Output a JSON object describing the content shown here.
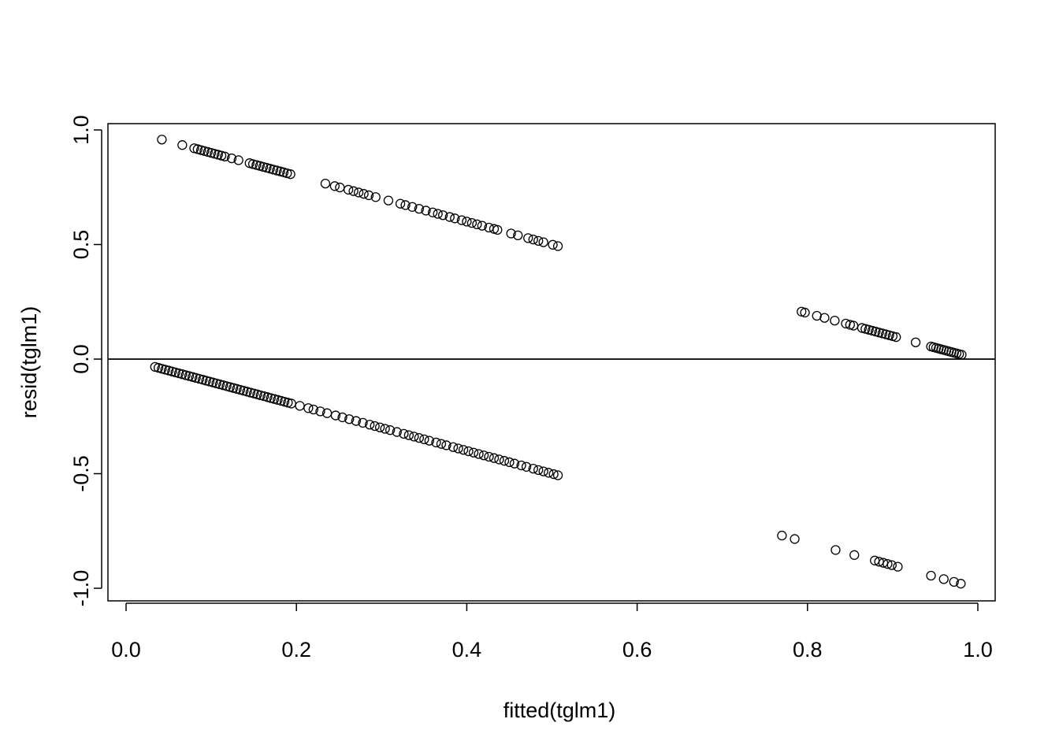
{
  "chart_data": {
    "type": "scatter",
    "title": "",
    "xlabel": "fitted(tglm1)",
    "ylabel": "resid(tglm1)",
    "xlim": [
      0.0,
      1.0
    ],
    "ylim": [
      -1.0,
      1.0
    ],
    "x_ticks": [
      "0.0",
      "0.2",
      "0.4",
      "0.6",
      "0.8",
      "1.0"
    ],
    "y_ticks": [
      "-1.0",
      "-0.5",
      "0.0",
      "0.5",
      "1.0"
    ],
    "reference_line_y": 0,
    "marker": "open-circle",
    "grid": false,
    "series": [
      {
        "x": [
          0.042,
          0.066,
          0.08,
          0.084,
          0.088,
          0.092,
          0.096,
          0.1,
          0.104,
          0.108,
          0.112,
          0.116,
          0.124,
          0.132,
          0.145,
          0.149,
          0.153,
          0.157,
          0.161,
          0.165,
          0.169,
          0.173,
          0.177,
          0.181,
          0.185,
          0.189,
          0.193,
          0.234,
          0.245,
          0.251,
          0.261,
          0.267,
          0.273,
          0.279,
          0.285,
          0.293,
          0.308,
          0.322,
          0.328,
          0.336,
          0.344,
          0.352,
          0.36,
          0.366,
          0.372,
          0.38,
          0.386,
          0.394,
          0.4,
          0.406,
          0.412,
          0.418,
          0.426,
          0.432,
          0.436,
          0.452,
          0.46,
          0.472,
          0.478,
          0.484,
          0.49,
          0.501,
          0.507
        ],
        "y": [
          0.958,
          0.934,
          0.92,
          0.916,
          0.912,
          0.908,
          0.904,
          0.9,
          0.896,
          0.892,
          0.888,
          0.884,
          0.876,
          0.868,
          0.855,
          0.851,
          0.847,
          0.843,
          0.839,
          0.835,
          0.831,
          0.827,
          0.823,
          0.819,
          0.815,
          0.811,
          0.807,
          0.766,
          0.755,
          0.749,
          0.739,
          0.733,
          0.727,
          0.721,
          0.715,
          0.707,
          0.692,
          0.678,
          0.672,
          0.664,
          0.656,
          0.648,
          0.64,
          0.634,
          0.628,
          0.62,
          0.614,
          0.606,
          0.6,
          0.594,
          0.588,
          0.582,
          0.574,
          0.568,
          0.564,
          0.548,
          0.54,
          0.528,
          0.522,
          0.516,
          0.51,
          0.499,
          0.493
        ]
      },
      {
        "x": [
          0.034,
          0.038,
          0.042,
          0.046,
          0.05,
          0.054,
          0.058,
          0.062,
          0.066,
          0.07,
          0.074,
          0.078,
          0.082,
          0.086,
          0.09,
          0.094,
          0.098,
          0.102,
          0.106,
          0.11,
          0.114,
          0.118,
          0.122,
          0.126,
          0.13,
          0.134,
          0.138,
          0.142,
          0.146,
          0.15,
          0.154,
          0.158,
          0.162,
          0.166,
          0.17,
          0.174,
          0.178,
          0.182,
          0.186,
          0.19,
          0.194,
          0.204,
          0.214,
          0.22,
          0.228,
          0.236,
          0.246,
          0.254,
          0.262,
          0.27,
          0.278,
          0.286,
          0.292,
          0.298,
          0.304,
          0.31,
          0.318,
          0.326,
          0.332,
          0.338,
          0.344,
          0.35,
          0.356,
          0.364,
          0.37,
          0.376,
          0.384,
          0.39,
          0.396,
          0.402,
          0.408,
          0.414,
          0.42,
          0.426,
          0.432,
          0.438,
          0.444,
          0.45,
          0.456,
          0.464,
          0.47,
          0.478,
          0.484,
          0.49,
          0.496,
          0.502,
          0.507
        ],
        "y": [
          -0.034,
          -0.038,
          -0.042,
          -0.046,
          -0.05,
          -0.054,
          -0.058,
          -0.062,
          -0.066,
          -0.07,
          -0.074,
          -0.078,
          -0.082,
          -0.086,
          -0.09,
          -0.094,
          -0.098,
          -0.102,
          -0.106,
          -0.11,
          -0.114,
          -0.118,
          -0.122,
          -0.126,
          -0.13,
          -0.134,
          -0.138,
          -0.142,
          -0.146,
          -0.15,
          -0.154,
          -0.158,
          -0.162,
          -0.166,
          -0.17,
          -0.174,
          -0.178,
          -0.182,
          -0.186,
          -0.19,
          -0.194,
          -0.204,
          -0.214,
          -0.22,
          -0.228,
          -0.236,
          -0.246,
          -0.254,
          -0.262,
          -0.27,
          -0.278,
          -0.286,
          -0.292,
          -0.298,
          -0.304,
          -0.31,
          -0.318,
          -0.326,
          -0.332,
          -0.338,
          -0.344,
          -0.35,
          -0.356,
          -0.364,
          -0.37,
          -0.376,
          -0.384,
          -0.39,
          -0.396,
          -0.402,
          -0.408,
          -0.414,
          -0.42,
          -0.426,
          -0.432,
          -0.438,
          -0.444,
          -0.45,
          -0.456,
          -0.464,
          -0.47,
          -0.478,
          -0.484,
          -0.49,
          -0.496,
          -0.502,
          -0.507
        ]
      },
      {
        "x": [
          0.793,
          0.797,
          0.811,
          0.82,
          0.832,
          0.845,
          0.85,
          0.854,
          0.864,
          0.868,
          0.872,
          0.876,
          0.88,
          0.884,
          0.888,
          0.892,
          0.896,
          0.9,
          0.904,
          0.927,
          0.945,
          0.948,
          0.951,
          0.954,
          0.957,
          0.96,
          0.963,
          0.966,
          0.969,
          0.972,
          0.975,
          0.978,
          0.981
        ],
        "y": [
          0.207,
          0.203,
          0.189,
          0.18,
          0.168,
          0.155,
          0.15,
          0.146,
          0.136,
          0.132,
          0.128,
          0.124,
          0.12,
          0.116,
          0.112,
          0.108,
          0.104,
          0.1,
          0.096,
          0.073,
          0.055,
          0.052,
          0.049,
          0.046,
          0.043,
          0.04,
          0.037,
          0.034,
          0.031,
          0.028,
          0.025,
          0.022,
          0.019
        ]
      },
      {
        "x": [
          0.77,
          0.785,
          0.833,
          0.855,
          0.879,
          0.884,
          0.889,
          0.894,
          0.899,
          0.906,
          0.945,
          0.96,
          0.972,
          0.98
        ],
        "y": [
          -0.77,
          -0.785,
          -0.833,
          -0.855,
          -0.879,
          -0.884,
          -0.889,
          -0.894,
          -0.899,
          -0.906,
          -0.945,
          -0.96,
          -0.972,
          -0.98
        ]
      }
    ]
  }
}
